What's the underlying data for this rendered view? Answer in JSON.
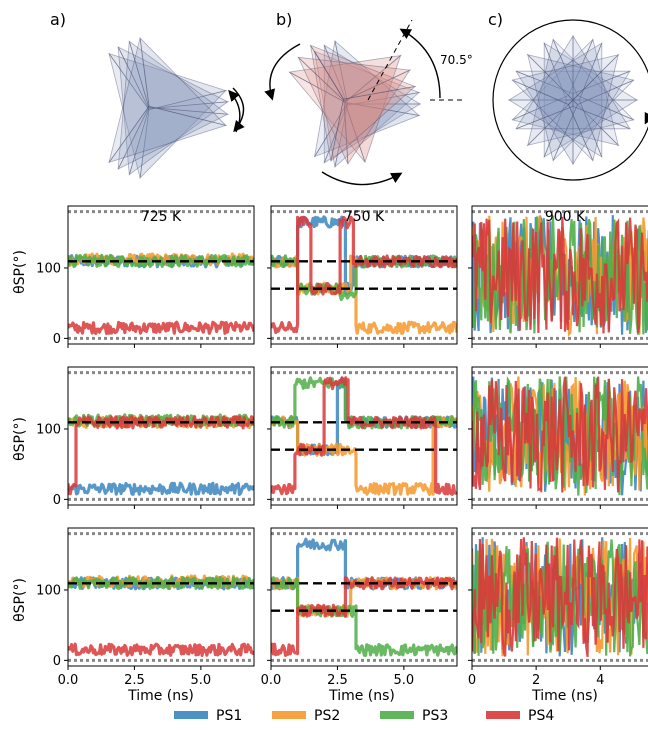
{
  "panel_labels": [
    "a)",
    "b)",
    "c)"
  ],
  "rotation_annotation": "70.5°",
  "colors": {
    "PS1": "#3a86bf",
    "PS2": "#f5982b",
    "PS3": "#4fae48",
    "PS4": "#d9383a",
    "reference": "#888888",
    "threshold": "#000000",
    "tetra_blue": "#7f8fb8",
    "tetra_red": "#d9847a"
  },
  "chart_data": {
    "type": "line",
    "layout": "3x3 grid",
    "ylabel": "θSP(°)",
    "xlabel": "Time (ns)",
    "legend": {
      "placement": "bottom-center",
      "entries": [
        "PS1",
        "PS2",
        "PS3",
        "PS4"
      ]
    },
    "reference_lines": {
      "style": "dotted",
      "y": [
        0,
        180
      ]
    },
    "threshold_lines": {
      "style": "dashed"
    },
    "columns": [
      {
        "title": "725 K",
        "xlim": [
          0,
          7
        ],
        "xticks": [
          "0.0",
          "2.5",
          "5.0"
        ],
        "xtick_values": [
          0,
          2.5,
          5
        ]
      },
      {
        "title": "750 K",
        "xlim": [
          0,
          7
        ],
        "xticks": [
          "0.0",
          "2.5",
          "5.0"
        ],
        "xtick_values": [
          0,
          2.5,
          5
        ]
      },
      {
        "title": "900 K",
        "xlim": [
          0,
          5.8
        ],
        "xticks": [
          "0",
          "2",
          "4"
        ],
        "xtick_values": [
          0,
          2,
          4
        ]
      }
    ],
    "ylim": [
      -8,
      188
    ],
    "yticks": [
      "0",
      "100"
    ],
    "ytick_values": [
      0,
      100
    ],
    "panels": [
      {
        "row": 0,
        "col": 0,
        "thresholds": [
          109.5
        ],
        "series": [
          {
            "name": "PS1",
            "segments": [
              [
                0,
                7,
                109.5
              ]
            ]
          },
          {
            "name": "PS2",
            "segments": [
              [
                0,
                7,
                112
              ]
            ]
          },
          {
            "name": "PS3",
            "segments": [
              [
                0,
                7,
                110
              ]
            ]
          },
          {
            "name": "PS4",
            "segments": [
              [
                0,
                7,
                15
              ]
            ]
          }
        ]
      },
      {
        "row": 0,
        "col": 1,
        "thresholds": [
          109.5,
          70.5
        ],
        "series": [
          {
            "name": "PS1",
            "segments": [
              [
                0,
                1.0,
                109.5
              ],
              [
                1.0,
                2.8,
                165
              ],
              [
                2.8,
                3.1,
                70.5
              ],
              [
                3.1,
                7,
                109.5
              ]
            ]
          },
          {
            "name": "PS2",
            "segments": [
              [
                0,
                1.0,
                109.5
              ],
              [
                1.0,
                3.0,
                70.5
              ],
              [
                3.0,
                3.2,
                109.5
              ],
              [
                3.2,
                7,
                15
              ]
            ]
          },
          {
            "name": "PS3",
            "segments": [
              [
                0,
                1.0,
                109.5
              ],
              [
                1.0,
                2.6,
                70.5
              ],
              [
                2.6,
                3.2,
                60
              ],
              [
                3.2,
                7,
                109.5
              ]
            ]
          },
          {
            "name": "PS4",
            "segments": [
              [
                0,
                1.0,
                15
              ],
              [
                1.0,
                1.5,
                165
              ],
              [
                1.5,
                2.6,
                70.5
              ],
              [
                2.6,
                3.1,
                165
              ],
              [
                3.1,
                7,
                109.5
              ]
            ]
          }
        ]
      },
      {
        "row": 0,
        "col": 2,
        "noisy": true,
        "thresholds": []
      },
      {
        "row": 1,
        "col": 0,
        "thresholds": [
          109.5
        ],
        "series": [
          {
            "name": "PS1",
            "segments": [
              [
                0,
                7,
                15
              ]
            ]
          },
          {
            "name": "PS2",
            "segments": [
              [
                0,
                7,
                110
              ]
            ]
          },
          {
            "name": "PS3",
            "segments": [
              [
                0,
                7,
                112
              ]
            ]
          },
          {
            "name": "PS4",
            "segments": [
              [
                0,
                0.3,
                15
              ],
              [
                0.3,
                7,
                109.5
              ]
            ]
          }
        ]
      },
      {
        "row": 1,
        "col": 1,
        "thresholds": [
          109.5,
          70.5
        ],
        "series": [
          {
            "name": "PS1",
            "segments": [
              [
                0,
                1.0,
                109.5
              ],
              [
                1.0,
                2.5,
                70.5
              ],
              [
                2.5,
                2.8,
                165
              ],
              [
                2.8,
                7,
                109.5
              ]
            ]
          },
          {
            "name": "PS2",
            "segments": [
              [
                0,
                1.0,
                109.5
              ],
              [
                1.0,
                3.2,
                70.5
              ],
              [
                3.2,
                6.1,
                15
              ],
              [
                6.1,
                7,
                109.5
              ]
            ]
          },
          {
            "name": "PS3",
            "segments": [
              [
                0,
                0.9,
                109.5
              ],
              [
                0.9,
                2.8,
                165
              ],
              [
                2.8,
                7,
                109.5
              ]
            ]
          },
          {
            "name": "PS4",
            "segments": [
              [
                0,
                0.9,
                15
              ],
              [
                0.9,
                2.0,
                70.5
              ],
              [
                2.0,
                2.9,
                165
              ],
              [
                2.9,
                6.2,
                109.5
              ],
              [
                6.2,
                7,
                15
              ]
            ]
          }
        ]
      },
      {
        "row": 1,
        "col": 2,
        "noisy": true,
        "thresholds": []
      },
      {
        "row": 2,
        "col": 0,
        "thresholds": [
          109.5
        ],
        "series": [
          {
            "name": "PS1",
            "segments": [
              [
                0,
                7,
                109.5
              ]
            ]
          },
          {
            "name": "PS2",
            "segments": [
              [
                0,
                7,
                112
              ]
            ]
          },
          {
            "name": "PS3",
            "segments": [
              [
                0,
                7,
                110
              ]
            ]
          },
          {
            "name": "PS4",
            "segments": [
              [
                0,
                7,
                15
              ]
            ]
          }
        ]
      },
      {
        "row": 2,
        "col": 1,
        "thresholds": [
          109.5,
          70.5
        ],
        "series": [
          {
            "name": "PS1",
            "segments": [
              [
                0,
                1.0,
                109.5
              ],
              [
                1.0,
                2.8,
                165
              ],
              [
                2.8,
                7,
                109.5
              ]
            ]
          },
          {
            "name": "PS2",
            "segments": [
              [
                0,
                1.0,
                109.5
              ],
              [
                1.0,
                3.0,
                70.5
              ],
              [
                3.0,
                3.3,
                109.5
              ],
              [
                3.3,
                7,
                109.5
              ]
            ]
          },
          {
            "name": "PS3",
            "segments": [
              [
                0,
                1.0,
                109.5
              ],
              [
                1.0,
                3.2,
                70.5
              ],
              [
                3.2,
                7,
                15
              ]
            ]
          },
          {
            "name": "PS4",
            "segments": [
              [
                0,
                1.0,
                15
              ],
              [
                1.0,
                2.8,
                70.5
              ],
              [
                2.8,
                7,
                109.5
              ]
            ]
          }
        ]
      },
      {
        "row": 2,
        "col": 2,
        "noisy": true,
        "thresholds": []
      }
    ]
  }
}
